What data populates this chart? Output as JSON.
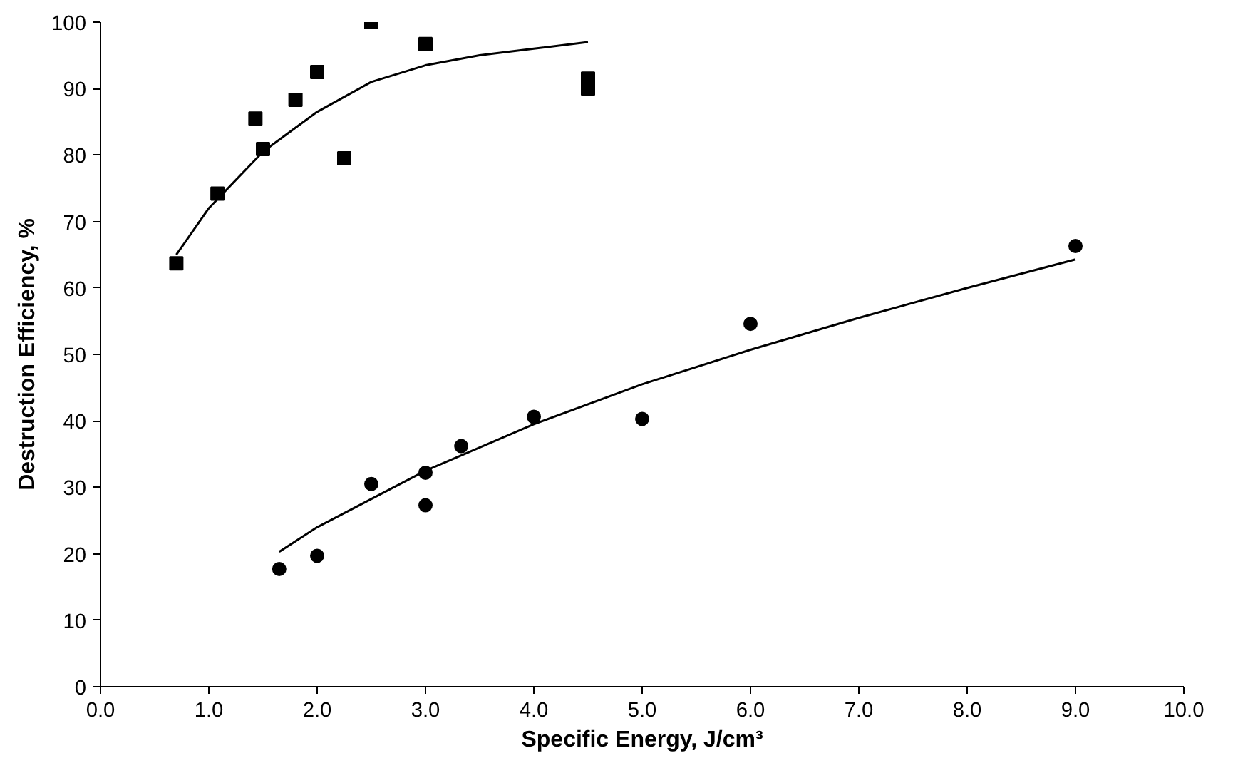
{
  "chart_data": {
    "type": "scatter",
    "xlabel": "Specific Energy, J/cm³",
    "ylabel": "Destruction Efficiency, %",
    "xlim": [
      0,
      10
    ],
    "ylim": [
      0,
      100
    ],
    "xticks": [
      {
        "value": 0,
        "label": "0.0"
      },
      {
        "value": 1,
        "label": "1.0"
      },
      {
        "value": 2,
        "label": "2.0"
      },
      {
        "value": 3,
        "label": "3.0"
      },
      {
        "value": 4,
        "label": "4.0"
      },
      {
        "value": 5,
        "label": "5.0"
      },
      {
        "value": 6,
        "label": "6.0"
      },
      {
        "value": 7,
        "label": "7.0"
      },
      {
        "value": 8,
        "label": "8.0"
      },
      {
        "value": 9,
        "label": "9.0"
      },
      {
        "value": 10,
        "label": "10.0"
      }
    ],
    "yticks": [
      0,
      10,
      20,
      30,
      40,
      50,
      60,
      70,
      80,
      90,
      100
    ],
    "grid": false,
    "series": [
      {
        "marker": "square",
        "color": "#000000",
        "x": [
          0.7,
          1.08,
          1.43,
          1.5,
          1.8,
          2.0,
          2.25,
          2.5,
          3.0,
          4.5,
          4.5
        ],
        "values": [
          63.7,
          74.2,
          85.5,
          80.9,
          88.3,
          92.5,
          79.5,
          100,
          96.7,
          91.5,
          90.0
        ]
      },
      {
        "marker": "circle",
        "color": "#000000",
        "x": [
          1.65,
          2.0,
          2.5,
          3.0,
          3.0,
          3.33,
          4.0,
          5.0,
          6.0,
          9.0
        ],
        "values": [
          17.7,
          19.7,
          30.5,
          32.2,
          27.3,
          36.2,
          40.6,
          40.3,
          54.6,
          66.3
        ]
      },
      {
        "type": "line",
        "color": "#000000",
        "x": [
          0.7,
          1.0,
          1.5,
          2.0,
          2.5,
          3.0,
          3.5,
          4.0,
          4.5
        ],
        "values": [
          65,
          72,
          80.5,
          86.5,
          91,
          93.5,
          95,
          96,
          97
        ]
      },
      {
        "type": "line",
        "color": "#000000",
        "x": [
          1.65,
          2,
          3,
          4,
          5,
          6,
          7,
          8,
          9
        ],
        "values": [
          20.3,
          24,
          32.5,
          39.5,
          45.5,
          50.7,
          55.5,
          60,
          64.3
        ]
      }
    ]
  }
}
